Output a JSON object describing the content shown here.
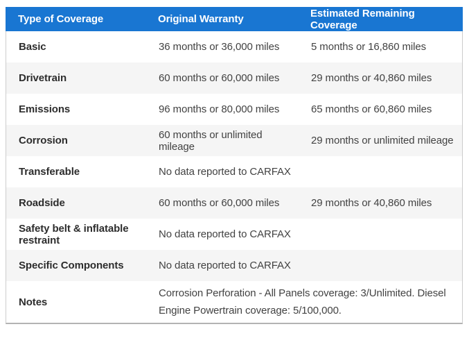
{
  "colors": {
    "header_bg": "#1976d2",
    "header_text": "#ffffff",
    "alt_row_bg": "#f5f5f5",
    "side_border": "#cccccc",
    "bottom_border": "#b3b3b3",
    "label_text": "#2d2d2d",
    "value_text": "#424242"
  },
  "table": {
    "columns": [
      "Type of Coverage",
      "Original Warranty",
      "Estimated Remaining Coverage"
    ],
    "rows": [
      {
        "type": "Basic",
        "original": "36 months or 36,000 miles",
        "remaining": "5 months or 16,860 miles"
      },
      {
        "type": "Drivetrain",
        "original": "60 months or 60,000 miles",
        "remaining": "29 months or 40,860 miles"
      },
      {
        "type": "Emissions",
        "original": "96 months or 80,000 miles",
        "remaining": "65 months or 60,860 miles"
      },
      {
        "type": "Corrosion",
        "original": "60 months or unlimited mileage",
        "remaining": "29 months or unlimited mileage"
      },
      {
        "type": "Transferable",
        "original": "No data reported to CARFAX",
        "remaining": ""
      },
      {
        "type": "Roadside",
        "original": "60 months or 60,000 miles",
        "remaining": "29 months or 40,860 miles"
      },
      {
        "type": "Safety belt & inflatable restraint",
        "original": "No data reported to CARFAX",
        "remaining": ""
      },
      {
        "type": "Specific Components",
        "original": "No data reported to CARFAX",
        "remaining": ""
      },
      {
        "type": "Notes",
        "original": "Corrosion Perforation - All Panels coverage: 3/Unlimited. Diesel Engine Powertrain coverage: 5/100,000.",
        "remaining": ""
      }
    ]
  }
}
